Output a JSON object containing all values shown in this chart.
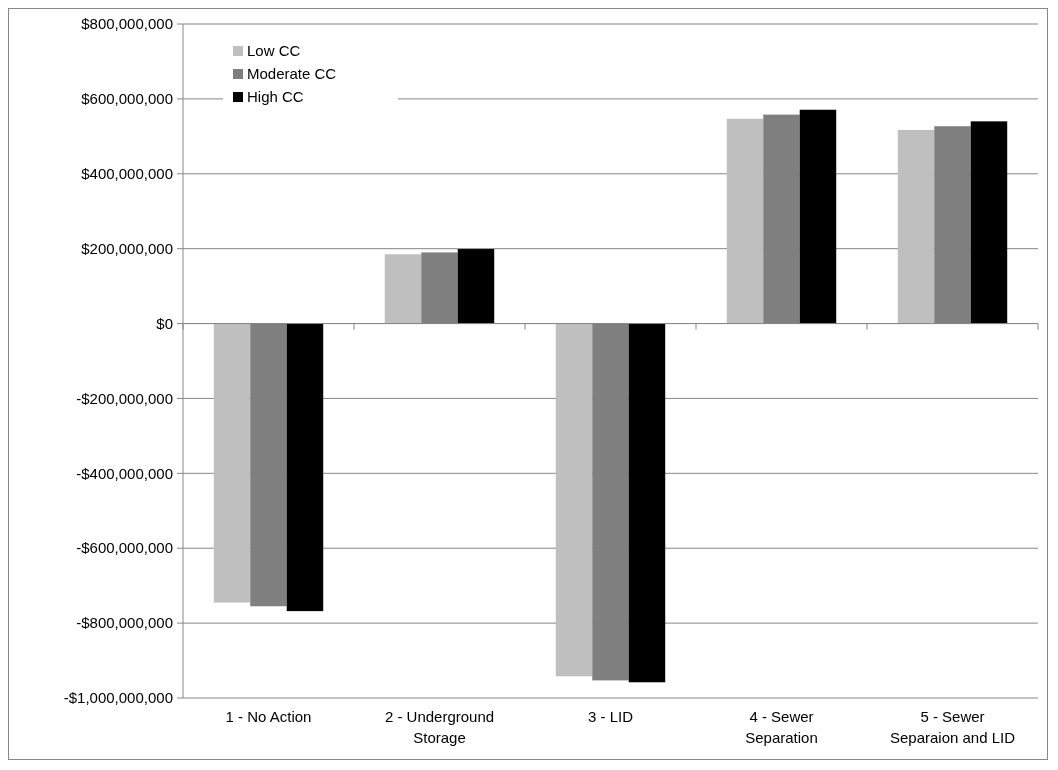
{
  "chart_data": {
    "type": "bar",
    "categories": [
      "1 - No Action",
      "2 - Underground Storage",
      "3 - LID",
      "4 - Sewer Separation",
      "5 - Sewer Separaion and LID"
    ],
    "series": [
      {
        "name": "Low CC",
        "color": "#bfbfbf",
        "values": [
          -745000000,
          185000000,
          -942000000,
          547000000,
          517000000
        ]
      },
      {
        "name": "Moderate CC",
        "color": "#7f7f7f",
        "values": [
          -755000000,
          190000000,
          -953000000,
          558000000,
          527000000
        ]
      },
      {
        "name": "High CC",
        "color": "#000000",
        "values": [
          -768000000,
          199000000,
          -958000000,
          571000000,
          540000000
        ]
      }
    ],
    "ylim": [
      -1000000000,
      800000000
    ],
    "yticks": [
      {
        "value": -1000000000,
        "label": "-$1,000,000,000"
      },
      {
        "value": -800000000,
        "label": "-$800,000,000"
      },
      {
        "value": -600000000,
        "label": "-$600,000,000"
      },
      {
        "value": -400000000,
        "label": "-$400,000,000"
      },
      {
        "value": -200000000,
        "label": "-$200,000,000"
      },
      {
        "value": 0,
        "label": "$0"
      },
      {
        "value": 200000000,
        "label": "$200,000,000"
      },
      {
        "value": 400000000,
        "label": "$400,000,000"
      },
      {
        "value": 600000000,
        "label": "$600,000,000"
      },
      {
        "value": 800000000,
        "label": "$800,000,000"
      }
    ],
    "grid": "y",
    "legend": "top left"
  }
}
